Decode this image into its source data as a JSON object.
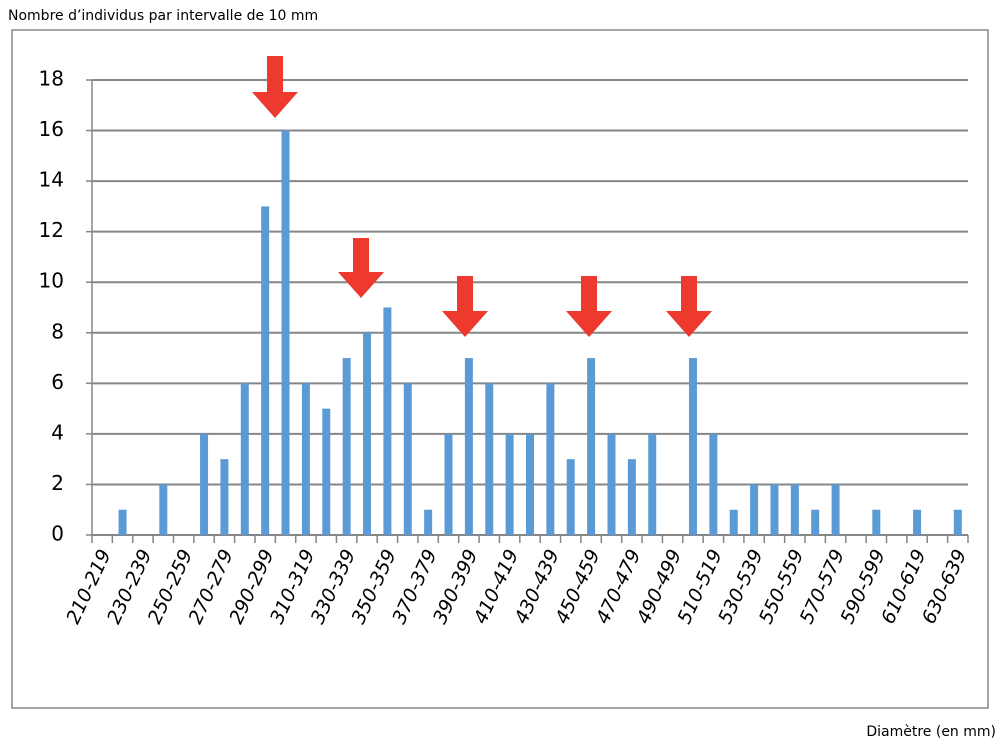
{
  "chart_data": {
    "type": "bar",
    "title": "Nombre d’individus par intervalle de 10 mm",
    "x_label": "Diamètre (en mm)",
    "categories": [
      "210-219",
      null,
      "230-239",
      null,
      "250-259",
      null,
      "270-279",
      null,
      "290-299",
      null,
      "310-319",
      null,
      "330-339",
      null,
      "350-359",
      null,
      "370-379",
      null,
      "390-399",
      null,
      "410-419",
      null,
      "430-439",
      null,
      "450-459",
      null,
      "470-479",
      null,
      "490-499",
      null,
      "510-519",
      null,
      "530-539",
      null,
      "550-559",
      null,
      "570-579",
      null,
      "590-599",
      null,
      "610-619",
      null,
      "630-639"
    ],
    "values": [
      0,
      1,
      0,
      2,
      0,
      4,
      3,
      6,
      13,
      16,
      6,
      5,
      7,
      8,
      9,
      6,
      1,
      4,
      7,
      6,
      4,
      4,
      6,
      3,
      7,
      4,
      3,
      4,
      0,
      7,
      4,
      1,
      2,
      2,
      2,
      1,
      2,
      0,
      1,
      0,
      1,
      0,
      1
    ],
    "color": "#5b9bd5",
    "ylim": [
      0,
      18
    ],
    "yticks": [
      0,
      2,
      4,
      6,
      8,
      10,
      12,
      14,
      16,
      18
    ],
    "grid": true
  }
}
